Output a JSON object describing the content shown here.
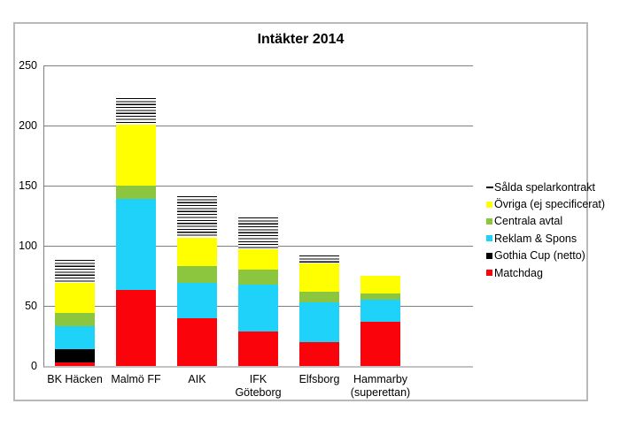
{
  "chart_data": {
    "type": "bar",
    "stacked": true,
    "title": "Intäkter 2014",
    "categories": [
      "BK Häcken",
      "Malmö FF",
      "AIK",
      "IFK\nGöteborg",
      "Elfsborg",
      "Hammarby\n(superettan)"
    ],
    "series": [
      {
        "name": "Matchdag",
        "color": "#fa030a",
        "pattern": "solid",
        "values": [
          3,
          63,
          40,
          29,
          20,
          37
        ]
      },
      {
        "name": "Gothia Cup (netto)",
        "color": "#000000",
        "pattern": "solid",
        "values": [
          11,
          0,
          0,
          0,
          0,
          0
        ]
      },
      {
        "name": "Reklam & Spons",
        "color": "#1ed2fa",
        "pattern": "solid",
        "values": [
          19,
          76,
          29,
          39,
          33,
          18
        ]
      },
      {
        "name": "Centrala avtal",
        "color": "#8cc63f",
        "pattern": "solid",
        "values": [
          11,
          11,
          14,
          12,
          9,
          5
        ]
      },
      {
        "name": "Övriga (ej specificerat)",
        "color": "#ffff00",
        "pattern": "solid",
        "values": [
          25,
          51,
          24,
          17,
          23,
          15
        ]
      },
      {
        "name": "Sålda spelarkontrakt",
        "color": "#000000",
        "pattern": "stripes",
        "values": [
          19,
          22,
          34,
          27,
          7,
          0
        ]
      }
    ],
    "totals": [
      88,
      223,
      141,
      124,
      92,
      75
    ],
    "ylabel": "",
    "xlabel": "",
    "ylim": [
      0,
      250
    ],
    "yticks": [
      0,
      50,
      100,
      150,
      200,
      250
    ],
    "grid": true,
    "legend_position": "right",
    "legend_order_top_to_bottom": [
      "Sålda spelarkontrakt",
      "Övriga (ej specificerat)",
      "Centrala avtal",
      "Reklam & Spons",
      "Gothia Cup (netto)",
      "Matchdag"
    ]
  },
  "colors": {
    "gridline": "#808080",
    "baseline": "#c3c3c3",
    "chart_border": "#b9b9b9",
    "background": "#ffffff",
    "text": "#000000"
  }
}
